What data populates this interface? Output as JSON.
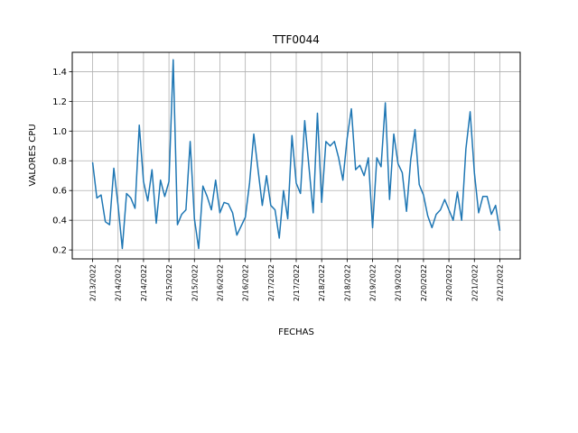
{
  "chart_data": {
    "type": "line",
    "title": "TTF0044",
    "xlabel": "FECHAS",
    "ylabel": "VALORES CPU",
    "grid": true,
    "color": "#1f77b4",
    "ylim": [
      0.14,
      1.53
    ],
    "yticks": [
      0.2,
      0.4,
      0.6,
      0.8,
      1.0,
      1.2,
      1.4
    ],
    "ytick_labels": [
      "0.2",
      "0.4",
      "0.6",
      "0.8",
      "1.0",
      "1.2",
      "1.4"
    ],
    "xticks": [
      "2/13/2022",
      "2/14/2022",
      "2/14/2022",
      "2/15/2022",
      "2/15/2022",
      "2/16/2022",
      "2/16/2022",
      "2/17/2022",
      "2/17/2022",
      "2/18/2022",
      "2/18/2022",
      "2/19/2022",
      "2/19/2022",
      "2/20/2022",
      "2/20/2022",
      "2/21/2022",
      "2/21/2022",
      "2/22/2022",
      "2/22/2022",
      "2/23/2022",
      "2/23/2022",
      "2/24/2022",
      "2/24/2022",
      "2/25/2022",
      "2/25/2022",
      "2/26/2022",
      "2/26/2022",
      "2/27/2022",
      "2/27/2022",
      "2/28/2022",
      "2/28/2022",
      "3/1/2022",
      "3/1/2022",
      "3/2/2022",
      "3/2/2022",
      "3/3/2022",
      "3/3/2022",
      "3/4/2022",
      "3/4/2022",
      "3/5/2022",
      "3/5/2022",
      "3/6/2022",
      "3/6/2022",
      "3/7/2022",
      "3/7/2022",
      "3/8/2022",
      "3/8/2022",
      "3/9/2022",
      "3/9/2022",
      "3/10/2022",
      "3/10/2022",
      "3/11/2022",
      "3/11/2022",
      "3/12/2022",
      "3/12/2022",
      "3/13/2022",
      "3/13/2022",
      "3/14/2022",
      "3/14/2022",
      "3/15/2022",
      "3/15/2022",
      "3/16/2022",
      "3/16/2022",
      "3/17/2022",
      "3/17/2022",
      "3/18/2022"
    ],
    "xtick_step": 6,
    "values": [
      0.79,
      0.55,
      0.57,
      0.39,
      0.37,
      0.75,
      0.5,
      0.21,
      0.58,
      0.55,
      0.48,
      1.04,
      0.66,
      0.53,
      0.74,
      0.38,
      0.67,
      0.56,
      0.66,
      1.48,
      0.37,
      0.44,
      0.47,
      0.93,
      0.41,
      0.21,
      0.63,
      0.56,
      0.47,
      0.67,
      0.45,
      0.52,
      0.51,
      0.45,
      0.3,
      0.36,
      0.42,
      0.65,
      0.98,
      0.74,
      0.5,
      0.7,
      0.5,
      0.47,
      0.28,
      0.6,
      0.41,
      0.97,
      0.65,
      0.58,
      1.07,
      0.76,
      0.45,
      1.12,
      0.52,
      0.93,
      0.9,
      0.93,
      0.82,
      0.67,
      0.95,
      1.15,
      0.74,
      0.77,
      0.7,
      0.82,
      0.35,
      0.82,
      0.76,
      1.19,
      0.54,
      0.98,
      0.78,
      0.72,
      0.46,
      0.81,
      1.01,
      0.64,
      0.57,
      0.43,
      0.35,
      0.44,
      0.47,
      0.54,
      0.47,
      0.4,
      0.59,
      0.4,
      0.88,
      1.13,
      0.72,
      0.45,
      0.56,
      0.56,
      0.44,
      0.5,
      0.33
    ]
  }
}
